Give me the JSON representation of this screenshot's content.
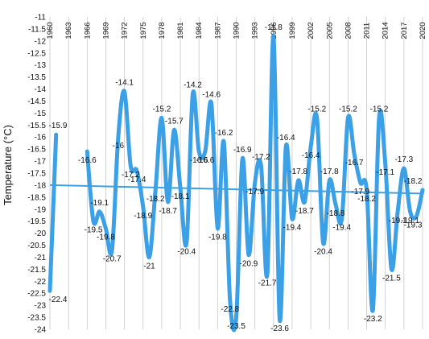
{
  "chart_data": {
    "type": "line",
    "title": "",
    "xlabel": "",
    "ylabel": "Temperature (°C)",
    "ylim": [
      -24,
      -11
    ],
    "ytick_step": 0.5,
    "yticks": [
      "-11",
      "-11.5",
      "-12",
      "-12.5",
      "-13",
      "-13.5",
      "-14",
      "-14.5",
      "-15",
      "-15.5",
      "-16",
      "-16.5",
      "-17",
      "-17.5",
      "-18",
      "-18.5",
      "-19",
      "-19.5",
      "-20",
      "-20.5",
      "-21",
      "-21.5",
      "-22",
      "-22.5",
      "-23",
      "-23.5",
      "-24"
    ],
    "xlim": [
      1960,
      2020
    ],
    "xticks": [
      "1960",
      "1963",
      "1966",
      "1969",
      "1972",
      "1975",
      "1978",
      "1981",
      "1984",
      "1987",
      "1990",
      "1993",
      "1996",
      "1999",
      "2002",
      "2005",
      "2008",
      "2011",
      "2014",
      "2017",
      "2020"
    ],
    "grid": {
      "vertical": true,
      "horizontal": false
    },
    "series": [
      {
        "name": "",
        "color": "#3ba0e6",
        "x": [
          1960,
          1961,
          1966,
          1967,
          1968,
          1969,
          1970,
          1971,
          1972,
          1973,
          1974,
          1975,
          1976,
          1977,
          1978,
          1979,
          1980,
          1981,
          1982,
          1983,
          1984,
          1985,
          1986,
          1987,
          1988,
          1989,
          1990,
          1991,
          1992,
          1993,
          1994,
          1995,
          1996,
          1997,
          1998,
          1999,
          2000,
          2001,
          2002,
          2003,
          2004,
          2005,
          2006,
          2007,
          2008,
          2009,
          2010,
          2011,
          2012,
          2013,
          2014,
          2015,
          2016,
          2017,
          2018,
          2019,
          2020
        ],
        "y": [
          -22.4,
          -15.9,
          -16.6,
          -19.5,
          -19.1,
          -19.8,
          -20.7,
          -16.0,
          -14.1,
          -17.2,
          -17.4,
          -18.9,
          -21.0,
          -18.2,
          -15.2,
          -18.7,
          -15.7,
          -18.1,
          -20.4,
          -14.2,
          -16.6,
          -16.6,
          -14.6,
          -19.8,
          -16.2,
          -22.8,
          -23.5,
          -16.9,
          -20.9,
          -17.9,
          -17.2,
          -21.7,
          -11.8,
          -23.6,
          -16.4,
          -19.4,
          -17.8,
          -18.7,
          -16.4,
          -15.2,
          -20.4,
          -17.8,
          -18.8,
          -19.4,
          -15.2,
          -16.7,
          -17.9,
          -18.2,
          -23.2,
          -15.2,
          -17.1,
          -21.5,
          -19.1,
          -17.3,
          -19.1,
          -19.3,
          -18.2
        ],
        "labels": [
          "-22.4",
          "-15.9",
          "-16.6",
          "-19.5",
          "-19.1",
          "-19.8",
          "-20.7",
          "-16",
          "-14.1",
          "-17.2",
          "-17.4",
          "-18.9",
          "-21",
          "-18.2",
          "-15.2",
          "-18.7",
          "-15.7",
          "-18.1",
          "-20.4",
          "-14.2",
          "-16.6",
          "-16.6",
          "-14.6",
          "-19.8",
          "-16.2",
          "-22.8",
          "-23.5",
          "-16.9",
          "-20.9",
          "-17.9",
          "-17.2",
          "-21.7",
          "-11.8",
          "-23.6",
          "-16.4",
          "-19.4",
          "-17.8",
          "-18.7",
          "-16.4",
          "-15.2",
          "-20.4",
          "-17.8",
          "-18.8",
          "-19.4",
          "-15.2",
          "-16.7",
          "-17.9",
          "-18.2",
          "-23.2",
          "-15.2",
          "-17.1",
          "-21.5",
          "-19.1",
          "-17.3",
          "-19.1",
          "-19.3",
          "-18.2"
        ]
      }
    ],
    "trendline": {
      "x": [
        1960,
        2020
      ],
      "y": [
        -18.0,
        -18.35
      ],
      "color": "#3ba0e6"
    }
  }
}
